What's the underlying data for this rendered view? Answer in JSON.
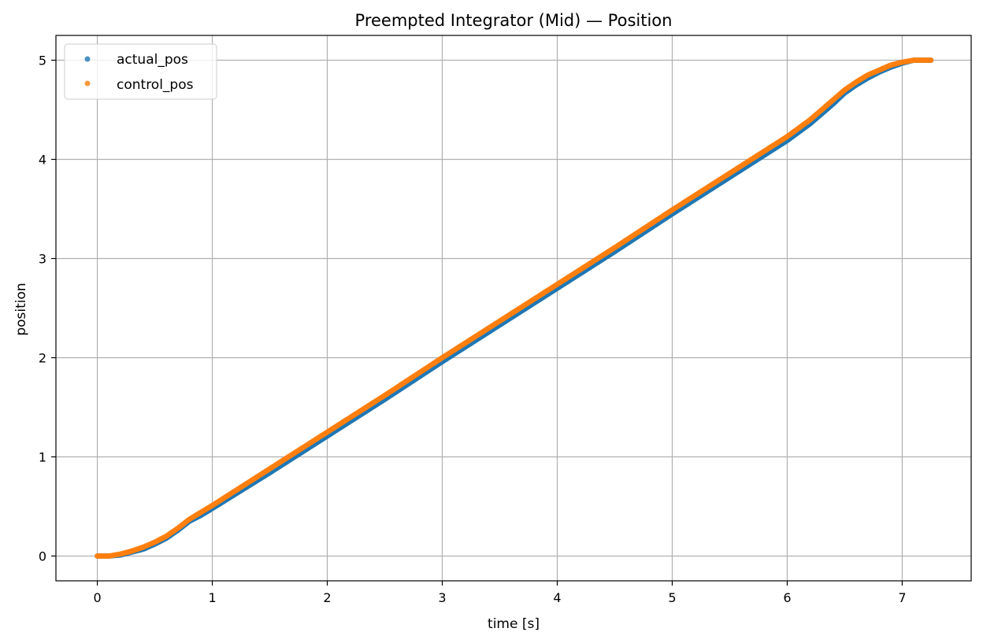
{
  "chart_data": {
    "type": "scatter",
    "title": "Preempted Integrator (Mid) — Position",
    "xlabel": "time [s]",
    "ylabel": "position",
    "xlim": [
      -0.36,
      7.6
    ],
    "ylim": [
      -0.25,
      5.25
    ],
    "xticks": [
      0,
      1,
      2,
      3,
      4,
      5,
      6,
      7
    ],
    "yticks": [
      0,
      1,
      2,
      3,
      4,
      5
    ],
    "grid": true,
    "legend_position": "top-left",
    "series": [
      {
        "name": "actual_pos",
        "color": "#1f77b4",
        "points": [
          [
            0.0,
            0.0
          ],
          [
            0.1,
            0.0
          ],
          [
            0.2,
            0.01
          ],
          [
            0.3,
            0.04
          ],
          [
            0.4,
            0.07
          ],
          [
            0.5,
            0.12
          ],
          [
            0.6,
            0.18
          ],
          [
            0.7,
            0.26
          ],
          [
            0.8,
            0.35
          ],
          [
            0.9,
            0.41
          ],
          [
            1.0,
            0.48
          ],
          [
            1.5,
            0.84
          ],
          [
            2.0,
            1.21
          ],
          [
            2.5,
            1.58
          ],
          [
            3.0,
            1.96
          ],
          [
            3.5,
            2.33
          ],
          [
            4.0,
            2.7
          ],
          [
            4.5,
            3.07
          ],
          [
            5.0,
            3.45
          ],
          [
            5.5,
            3.82
          ],
          [
            6.0,
            4.19
          ],
          [
            6.2,
            4.36
          ],
          [
            6.3,
            4.46
          ],
          [
            6.4,
            4.56
          ],
          [
            6.5,
            4.67
          ],
          [
            6.6,
            4.75
          ],
          [
            6.7,
            4.82
          ],
          [
            6.8,
            4.88
          ],
          [
            6.9,
            4.93
          ],
          [
            7.0,
            4.97
          ],
          [
            7.1,
            5.0
          ],
          [
            7.25,
            5.0
          ]
        ]
      },
      {
        "name": "control_pos",
        "color": "#ff7f0e",
        "points": [
          [
            0.0,
            0.0
          ],
          [
            0.1,
            0.0
          ],
          [
            0.2,
            0.02
          ],
          [
            0.3,
            0.05
          ],
          [
            0.4,
            0.09
          ],
          [
            0.5,
            0.14
          ],
          [
            0.6,
            0.2
          ],
          [
            0.7,
            0.28
          ],
          [
            0.8,
            0.37
          ],
          [
            0.9,
            0.44
          ],
          [
            1.0,
            0.51
          ],
          [
            1.5,
            0.88
          ],
          [
            2.0,
            1.25
          ],
          [
            2.5,
            1.62
          ],
          [
            3.0,
            2.0
          ],
          [
            3.5,
            2.37
          ],
          [
            4.0,
            2.74
          ],
          [
            4.5,
            3.11
          ],
          [
            5.0,
            3.49
          ],
          [
            5.5,
            3.86
          ],
          [
            6.0,
            4.23
          ],
          [
            6.2,
            4.4
          ],
          [
            6.3,
            4.5
          ],
          [
            6.4,
            4.6
          ],
          [
            6.5,
            4.7
          ],
          [
            6.6,
            4.78
          ],
          [
            6.7,
            4.85
          ],
          [
            6.8,
            4.9
          ],
          [
            6.9,
            4.95
          ],
          [
            7.0,
            4.98
          ],
          [
            7.1,
            5.0
          ],
          [
            7.25,
            5.0
          ]
        ]
      }
    ]
  }
}
